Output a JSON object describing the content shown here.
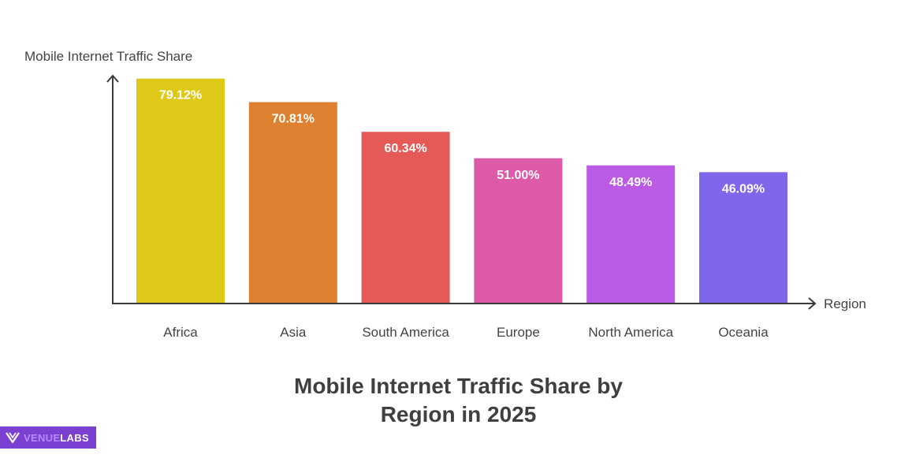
{
  "chart_data": {
    "type": "bar",
    "title_lines": [
      "Mobile Internet Traffic Share by",
      "Region in 2025"
    ],
    "ylabel": "Mobile Internet Traffic Share",
    "xlabel": "Region",
    "categories": [
      "Africa",
      "Asia",
      "South America",
      "Europe",
      "North America",
      "Oceania"
    ],
    "values": [
      79.12,
      70.81,
      60.34,
      51.0,
      48.49,
      46.09
    ],
    "value_labels": [
      "79.12%",
      "70.81%",
      "60.34%",
      "51.00%",
      "48.49%",
      "46.09%"
    ],
    "colors": [
      "#dfc918",
      "#dd8131",
      "#e55957",
      "#dd5aa9",
      "#bb5ae5",
      "#7f66ea"
    ],
    "unit": "%",
    "grid": false
  },
  "brand": {
    "part1": "VENUE",
    "part2": "LABS",
    "color": "#7b3fd1"
  }
}
